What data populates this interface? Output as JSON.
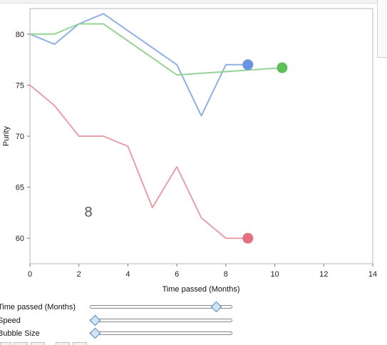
{
  "chart_data": {
    "type": "line",
    "xlabel": "Time passed (Months)",
    "ylabel": "Purity",
    "xlim": [
      0,
      14
    ],
    "ylim": [
      57.5,
      82.5
    ],
    "x_ticks": [
      0,
      2,
      4,
      6,
      8,
      10,
      12,
      14
    ],
    "y_ticks": [
      60,
      65,
      70,
      75,
      80
    ],
    "grid": false,
    "frame_label": "8",
    "series": [
      {
        "color": "#8fb0e3",
        "bubble_color": "#6b93e3",
        "x": [
          0,
          1,
          2,
          3,
          6,
          7,
          8,
          9
        ],
        "y": [
          80,
          79,
          81,
          82,
          77,
          72,
          77,
          77
        ],
        "bubble": [
          8.9,
          77
        ]
      },
      {
        "color": "#96d495",
        "bubble_color": "#5cbf5c",
        "x": [
          0,
          1,
          2,
          3,
          6,
          10.3
        ],
        "y": [
          80,
          80,
          81,
          81,
          76,
          76.7
        ],
        "bubble": [
          10.3,
          76.7
        ]
      },
      {
        "color": "#e8a0a8",
        "bubble_color": "#e2707f",
        "x": [
          0,
          1,
          2,
          3,
          4,
          5,
          6,
          7,
          8,
          9
        ],
        "y": [
          75,
          73,
          70,
          70,
          69,
          63,
          67,
          62,
          60,
          60
        ],
        "bubble": [
          8.9,
          60
        ]
      }
    ]
  },
  "controls": {
    "time_label": "Time passed (Months)",
    "speed_label": "Speed",
    "bubble_size_label": "Bubble Size",
    "time_value": 0.89,
    "speed_value": 0.03,
    "bubble_size_value": 0.03
  }
}
